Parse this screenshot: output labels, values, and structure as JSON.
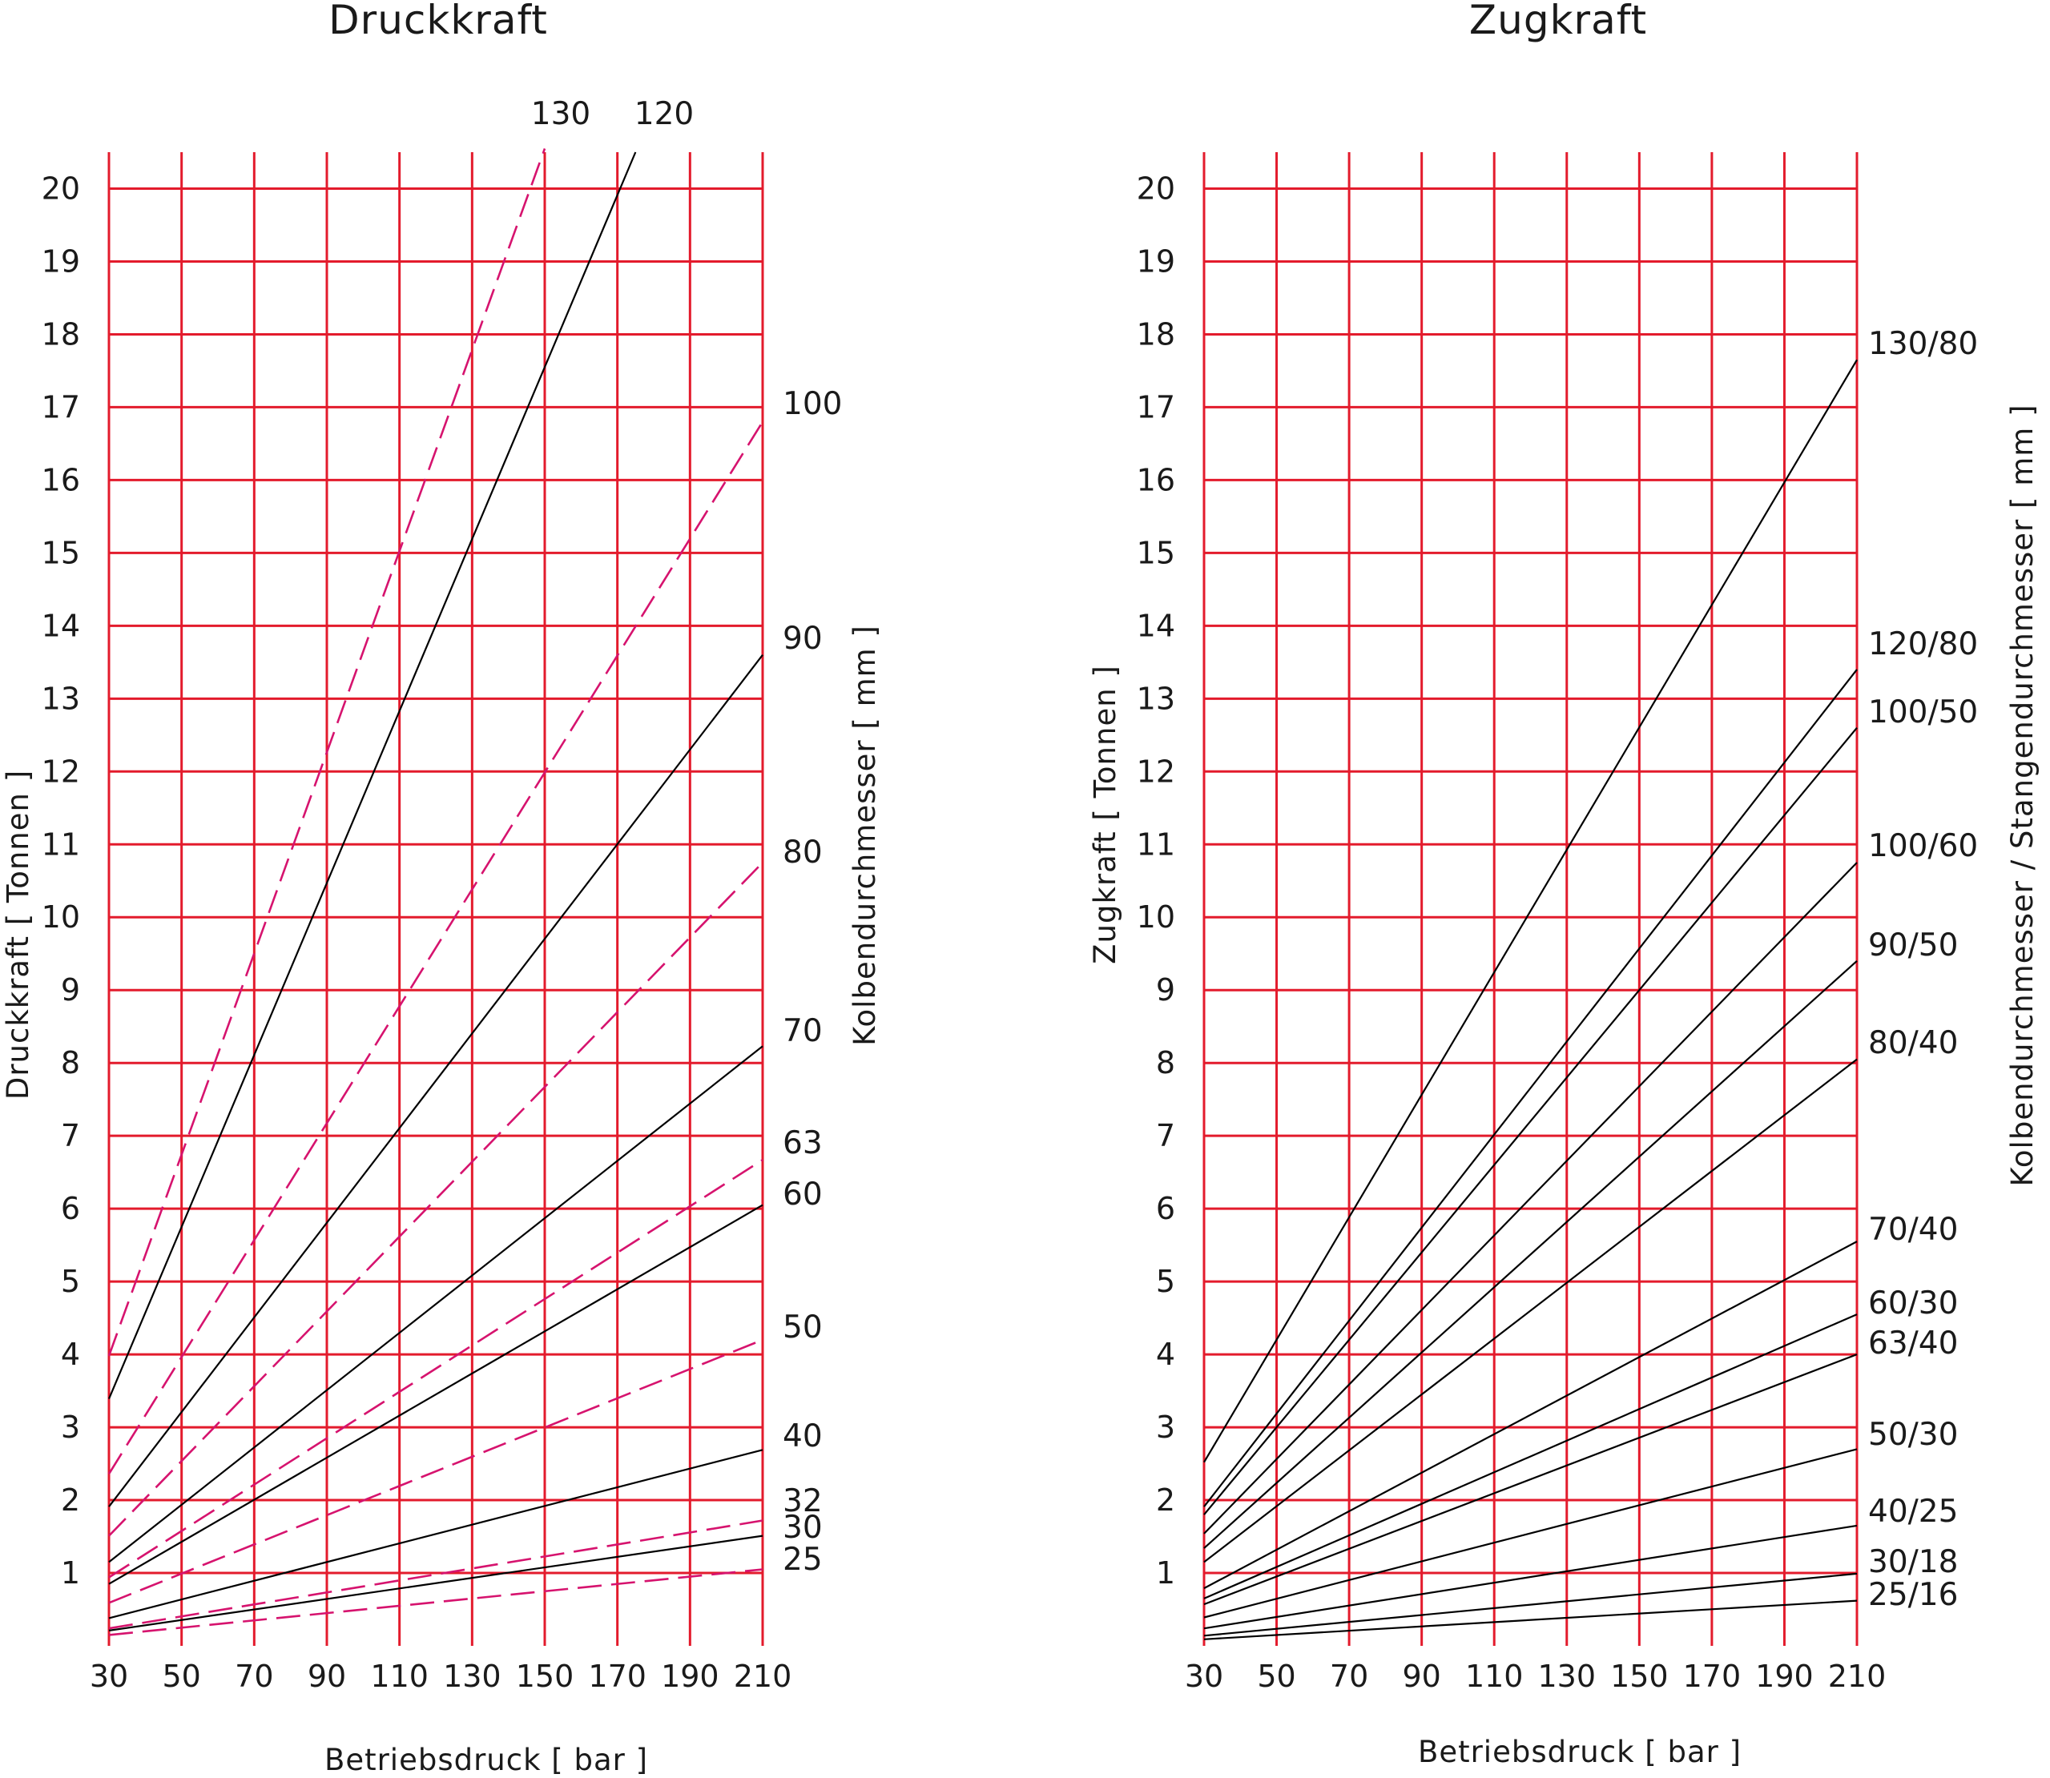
{
  "chart_data": [
    {
      "type": "line",
      "title": "Druckkraft",
      "xlabel": "Betriebsdruck [ bar ]",
      "ylabel": "Druckkraft [ Tonnen ]",
      "right_label": "Kolbendurchmesser [ mm ]",
      "x_ticks": [
        30,
        50,
        70,
        90,
        110,
        130,
        150,
        170,
        190,
        210
      ],
      "y_ticks": [
        1,
        2,
        3,
        4,
        5,
        6,
        7,
        8,
        9,
        10,
        11,
        12,
        13,
        14,
        15,
        16,
        17,
        18,
        19,
        20
      ],
      "xlim": [
        30,
        210
      ],
      "ylim": [
        0,
        20.5
      ],
      "grid": true,
      "colors": {
        "grid": "#e31b2c",
        "solid": "#000000",
        "dashed": "#d6136e"
      },
      "series": [
        {
          "name": "130",
          "style": "dashed",
          "x": [
            30,
            150
          ],
          "y": [
            3.98,
            20.55
          ]
        },
        {
          "name": "120",
          "style": "solid",
          "x": [
            30,
            175
          ],
          "y": [
            3.39,
            20.5
          ]
        },
        {
          "name": "100",
          "style": "dashed",
          "x": [
            30,
            210
          ],
          "y": [
            2.36,
            16.8
          ]
        },
        {
          "name": "90",
          "style": "solid",
          "x": [
            30,
            210
          ],
          "y": [
            1.91,
            13.6
          ]
        },
        {
          "name": "80",
          "style": "dashed",
          "x": [
            30,
            210
          ],
          "y": [
            1.51,
            10.75
          ]
        },
        {
          "name": "70",
          "style": "solid",
          "x": [
            30,
            210
          ],
          "y": [
            1.15,
            8.23
          ]
        },
        {
          "name": "63",
          "style": "dashed",
          "x": [
            30,
            210
          ],
          "y": [
            0.94,
            6.67
          ]
        },
        {
          "name": "60",
          "style": "solid",
          "x": [
            30,
            210
          ],
          "y": [
            0.85,
            6.05
          ]
        },
        {
          "name": "50",
          "style": "dashed",
          "x": [
            30,
            210
          ],
          "y": [
            0.59,
            4.2
          ]
        },
        {
          "name": "40",
          "style": "solid",
          "x": [
            30,
            210
          ],
          "y": [
            0.38,
            2.69
          ]
        },
        {
          "name": "32",
          "style": "dashed",
          "x": [
            30,
            210
          ],
          "y": [
            0.24,
            1.72
          ]
        },
        {
          "name": "30",
          "style": "solid",
          "x": [
            30,
            210
          ],
          "y": [
            0.21,
            1.51
          ]
        },
        {
          "name": "25",
          "style": "dashed",
          "x": [
            30,
            210
          ],
          "y": [
            0.15,
            1.05
          ]
        }
      ]
    },
    {
      "type": "line",
      "title": "Zugkraft",
      "xlabel": "Betriebsdruck [ bar ]",
      "ylabel": "Zugkraft [ Tonnen ]",
      "right_label": "Kolbendurchmesser / Stangendurchmesser [ mm ]",
      "x_ticks": [
        30,
        50,
        70,
        90,
        110,
        130,
        150,
        170,
        190,
        210
      ],
      "y_ticks": [
        1,
        2,
        3,
        4,
        5,
        6,
        7,
        8,
        9,
        10,
        11,
        12,
        13,
        14,
        15,
        16,
        17,
        18,
        19,
        20
      ],
      "xlim": [
        30,
        210
      ],
      "ylim": [
        0,
        20.5
      ],
      "grid": true,
      "colors": {
        "grid": "#e31b2c",
        "solid": "#000000"
      },
      "series": [
        {
          "name": "130/80",
          "style": "solid",
          "x": [
            30,
            210
          ],
          "y": [
            2.52,
            17.65
          ]
        },
        {
          "name": "120/80",
          "style": "solid",
          "x": [
            30,
            210
          ],
          "y": [
            1.91,
            13.4
          ]
        },
        {
          "name": "100/50",
          "style": "solid",
          "x": [
            30,
            210
          ],
          "y": [
            1.8,
            12.6
          ]
        },
        {
          "name": "100/60",
          "style": "solid",
          "x": [
            30,
            210
          ],
          "y": [
            1.54,
            10.75
          ]
        },
        {
          "name": "90/50",
          "style": "solid",
          "x": [
            30,
            210
          ],
          "y": [
            1.34,
            9.4
          ]
        },
        {
          "name": "80/40",
          "style": "solid",
          "x": [
            30,
            210
          ],
          "y": [
            1.15,
            8.05
          ]
        },
        {
          "name": "70/40",
          "style": "solid",
          "x": [
            30,
            210
          ],
          "y": [
            0.79,
            5.55
          ]
        },
        {
          "name": "60/30",
          "style": "solid",
          "x": [
            30,
            210
          ],
          "y": [
            0.65,
            4.55
          ]
        },
        {
          "name": "63/40",
          "style": "solid",
          "x": [
            30,
            210
          ],
          "y": [
            0.57,
            4.0
          ]
        },
        {
          "name": "50/30",
          "style": "solid",
          "x": [
            30,
            210
          ],
          "y": [
            0.39,
            2.7
          ]
        },
        {
          "name": "40/25",
          "style": "solid",
          "x": [
            30,
            210
          ],
          "y": [
            0.24,
            1.65
          ]
        },
        {
          "name": "30/18",
          "style": "solid",
          "x": [
            30,
            210
          ],
          "y": [
            0.14,
            0.99
          ]
        },
        {
          "name": "25/16",
          "style": "solid",
          "x": [
            30,
            210
          ],
          "y": [
            0.09,
            0.62
          ]
        }
      ]
    }
  ]
}
